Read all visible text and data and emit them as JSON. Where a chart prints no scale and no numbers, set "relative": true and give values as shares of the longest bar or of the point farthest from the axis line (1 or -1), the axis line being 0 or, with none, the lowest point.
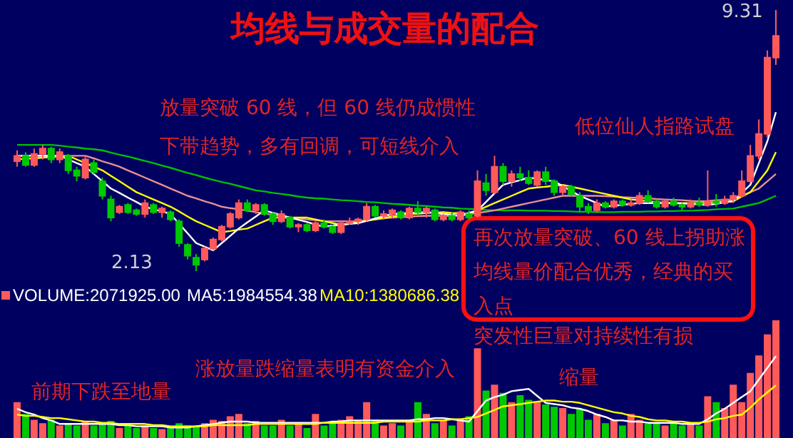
{
  "chart_data": [
    {
      "type": "candlestick",
      "title": "均线与成交量的配合",
      "categories": [
        null,
        null,
        null,
        null,
        null,
        null,
        null,
        null,
        null,
        null,
        null,
        null,
        null,
        null,
        null,
        null,
        null,
        null,
        null,
        null,
        null,
        null,
        null,
        null,
        null,
        null,
        null,
        null,
        null,
        null,
        null,
        null,
        null,
        null,
        null,
        null,
        null,
        null,
        null,
        null,
        null,
        null,
        null,
        null,
        null,
        null,
        null,
        null,
        null,
        null,
        null,
        null,
        null,
        null,
        null,
        null,
        null,
        null,
        null,
        null,
        null,
        null,
        null,
        null,
        null,
        null,
        null,
        null,
        null,
        null,
        null,
        null,
        null,
        null,
        null,
        null,
        null,
        null,
        null,
        null,
        null,
        null,
        null,
        null,
        null,
        null,
        null,
        null,
        null,
        null
      ],
      "ohlc": [
        [
          5.15,
          5.45,
          5.0,
          5.3
        ],
        [
          5.3,
          5.4,
          5.0,
          5.05
        ],
        [
          5.05,
          5.5,
          5.0,
          5.35
        ],
        [
          5.35,
          5.6,
          5.2,
          5.5
        ],
        [
          5.5,
          5.55,
          5.1,
          5.2
        ],
        [
          5.2,
          5.5,
          5.1,
          5.4
        ],
        [
          5.3,
          5.35,
          4.8,
          4.9
        ],
        [
          4.9,
          5.0,
          4.6,
          4.75
        ],
        [
          4.7,
          5.3,
          4.65,
          5.2
        ],
        [
          5.1,
          5.2,
          4.8,
          4.85
        ],
        [
          4.6,
          4.7,
          4.1,
          4.2
        ],
        [
          4.1,
          4.2,
          3.5,
          3.6
        ],
        [
          3.75,
          3.95,
          3.7,
          3.9
        ],
        [
          3.95,
          4.0,
          3.7,
          3.75
        ],
        [
          3.8,
          3.85,
          3.65,
          3.7
        ],
        [
          3.7,
          4.1,
          3.6,
          4.0
        ],
        [
          3.95,
          4.0,
          3.7,
          3.75
        ],
        [
          3.75,
          3.9,
          3.6,
          3.85
        ],
        [
          3.75,
          3.8,
          3.5,
          3.55
        ],
        [
          3.5,
          3.55,
          2.8,
          2.9
        ],
        [
          2.85,
          2.9,
          2.45,
          2.55
        ],
        [
          2.5,
          2.6,
          2.13,
          2.3
        ],
        [
          2.45,
          2.8,
          2.4,
          2.75
        ],
        [
          2.75,
          3.05,
          2.7,
          3.0
        ],
        [
          3.0,
          3.4,
          2.95,
          3.35
        ],
        [
          3.35,
          3.75,
          3.3,
          3.7
        ],
        [
          3.6,
          4.1,
          3.55,
          4.0
        ],
        [
          4.0,
          4.1,
          3.75,
          3.8
        ],
        [
          3.8,
          4.0,
          3.7,
          3.95
        ],
        [
          3.95,
          4.0,
          3.65,
          3.7
        ],
        [
          3.7,
          3.75,
          3.4,
          3.5
        ],
        [
          3.5,
          3.8,
          3.45,
          3.7
        ],
        [
          3.6,
          3.65,
          3.3,
          3.35
        ],
        [
          3.35,
          3.45,
          3.2,
          3.4
        ],
        [
          3.4,
          3.45,
          3.2,
          3.25
        ],
        [
          3.25,
          3.5,
          3.2,
          3.45
        ],
        [
          3.45,
          3.55,
          3.3,
          3.35
        ],
        [
          3.35,
          3.4,
          3.15,
          3.2
        ],
        [
          3.2,
          3.5,
          3.15,
          3.45
        ],
        [
          3.45,
          3.6,
          3.4,
          3.5
        ],
        [
          3.5,
          3.6,
          3.4,
          3.55
        ],
        [
          3.55,
          4.0,
          3.5,
          3.9
        ],
        [
          3.9,
          3.95,
          3.6,
          3.65
        ],
        [
          3.65,
          3.8,
          3.55,
          3.7
        ],
        [
          3.7,
          3.85,
          3.6,
          3.8
        ],
        [
          3.75,
          3.8,
          3.55,
          3.6
        ],
        [
          3.6,
          3.9,
          3.55,
          3.85
        ],
        [
          3.85,
          4.05,
          3.7,
          3.75
        ],
        [
          3.75,
          3.9,
          3.6,
          3.85
        ],
        [
          3.8,
          3.85,
          3.5,
          3.55
        ],
        [
          3.55,
          3.7,
          3.5,
          3.65
        ],
        [
          3.65,
          3.75,
          3.5,
          3.55
        ],
        [
          3.55,
          3.8,
          3.5,
          3.75
        ],
        [
          3.7,
          3.8,
          3.55,
          3.6
        ],
        [
          3.65,
          4.9,
          3.6,
          4.6
        ],
        [
          4.55,
          4.8,
          4.2,
          4.35
        ],
        [
          4.3,
          5.3,
          4.25,
          5.0
        ],
        [
          5.0,
          5.1,
          4.5,
          4.6
        ],
        [
          4.6,
          4.9,
          4.45,
          4.8
        ],
        [
          4.8,
          5.0,
          4.6,
          4.7
        ],
        [
          4.7,
          4.9,
          4.5,
          4.55
        ],
        [
          4.5,
          4.9,
          4.45,
          4.85
        ],
        [
          4.85,
          5.0,
          4.5,
          4.6
        ],
        [
          4.6,
          4.65,
          4.2,
          4.3
        ],
        [
          4.3,
          4.5,
          4.2,
          4.45
        ],
        [
          4.45,
          4.5,
          4.2,
          4.25
        ],
        [
          4.2,
          4.3,
          3.75,
          3.9
        ],
        [
          3.9,
          4.0,
          3.7,
          3.8
        ],
        [
          3.8,
          4.1,
          3.75,
          4.0
        ],
        [
          4.0,
          4.05,
          3.85,
          3.9
        ],
        [
          3.9,
          4.1,
          3.85,
          4.05
        ],
        [
          4.05,
          4.1,
          3.9,
          3.95
        ],
        [
          3.95,
          4.1,
          3.9,
          4.0
        ],
        [
          4.0,
          4.3,
          3.95,
          4.2
        ],
        [
          4.2,
          4.35,
          4.0,
          4.05
        ],
        [
          4.05,
          4.1,
          3.85,
          3.9
        ],
        [
          3.9,
          4.1,
          3.85,
          4.05
        ],
        [
          4.05,
          4.15,
          3.9,
          3.95
        ],
        [
          3.95,
          4.0,
          3.8,
          3.9
        ],
        [
          3.9,
          4.1,
          3.85,
          4.0
        ],
        [
          4.0,
          4.15,
          3.9,
          3.95
        ],
        [
          3.95,
          4.9,
          3.9,
          4.05
        ],
        [
          4.05,
          4.25,
          3.9,
          4.0
        ],
        [
          4.0,
          4.2,
          3.95,
          4.1
        ],
        [
          4.1,
          4.3,
          4.0,
          4.2
        ],
        [
          4.2,
          4.9,
          4.15,
          4.6
        ],
        [
          4.6,
          5.6,
          4.55,
          5.3
        ],
        [
          5.3,
          6.3,
          5.2,
          5.9
        ],
        [
          5.9,
          8.2,
          5.8,
          8.0
        ],
        [
          8.0,
          9.31,
          7.8,
          8.6
        ]
      ],
      "colors": [
        "#ff5a5a",
        "#00c800",
        "#ff5a5a",
        "#ff5a5a",
        "#00c800",
        "#ff5a5a",
        "#00c800",
        "#00c800",
        "#ff5a5a",
        "#00c800",
        "#00c800",
        "#00c800",
        "#ff5a5a",
        "#00c800",
        "#00c800",
        "#ff5a5a",
        "#00c800",
        "#ff5a5a",
        "#00c800",
        "#00c800",
        "#00c800",
        "#00c800",
        "#ff5a5a",
        "#ff5a5a",
        "#ff5a5a",
        "#ff5a5a",
        "#ff5a5a",
        "#00c800",
        "#ff5a5a",
        "#00c800",
        "#00c800",
        "#ff5a5a",
        "#00c800",
        "#ff5a5a",
        "#00c800",
        "#ff5a5a",
        "#00c800",
        "#00c800",
        "#ff5a5a",
        "#ff5a5a",
        "#ff5a5a",
        "#ff5a5a",
        "#00c800",
        "#ff5a5a",
        "#ff5a5a",
        "#00c800",
        "#ff5a5a",
        "#00c800",
        "#ff5a5a",
        "#00c800",
        "#ff5a5a",
        "#00c800",
        "#ff5a5a",
        "#00c800",
        "#ff5a5a",
        "#00c800",
        "#ff5a5a",
        "#00c800",
        "#ff5a5a",
        "#00c800",
        "#00c800",
        "#ff5a5a",
        "#00c800",
        "#00c800",
        "#ff5a5a",
        "#00c800",
        "#00c800",
        "#00c800",
        "#ff5a5a",
        "#00c800",
        "#ff5a5a",
        "#00c800",
        "#ff5a5a",
        "#ff5a5a",
        "#00c800",
        "#00c800",
        "#ff5a5a",
        "#00c800",
        "#00c800",
        "#ff5a5a",
        "#00c800",
        "#ff5a5a",
        "#00c800",
        "#ff5a5a",
        "#ff5a5a",
        "#ff5a5a",
        "#ff5a5a",
        "#ff5a5a",
        "#ff5a5a",
        "#ff5a5a"
      ],
      "series": [
        {
          "type": "line",
          "color": "#00c000",
          "values": [
            5.6,
            5.6,
            5.6,
            5.6,
            5.6,
            5.58,
            5.55,
            5.53,
            5.5,
            5.48,
            5.45,
            5.39,
            5.33,
            5.28,
            5.22,
            5.16,
            5.1,
            5.03,
            4.97,
            4.9,
            4.83,
            4.77,
            4.7,
            4.64,
            4.58,
            4.53,
            4.47,
            4.41,
            4.35,
            4.32,
            4.28,
            4.25,
            4.22,
            4.18,
            4.15,
            4.13,
            4.12,
            4.1,
            4.08,
            4.07,
            4.05,
            4.03,
            4.02,
            4.0,
            3.98,
            3.97,
            3.95,
            3.93,
            3.92,
            3.9,
            3.88,
            3.87,
            3.85,
            3.84,
            3.83,
            3.81,
            3.8,
            3.8,
            3.8,
            3.8,
            3.79,
            3.79,
            3.79,
            3.78,
            3.78,
            3.77,
            3.76,
            3.76,
            3.75,
            3.75,
            3.75,
            3.76,
            3.76,
            3.76,
            3.77,
            3.77,
            3.78,
            3.78,
            3.79,
            3.79,
            3.8,
            3.81,
            3.83,
            3.84,
            3.85,
            3.9,
            3.95,
            4.0,
            4.1,
            4.2
          ]
        },
        {
          "type": "line",
          "color": "#e89090",
          "values": [
            5.3,
            5.3,
            5.3,
            5.3,
            5.3,
            5.3,
            5.3,
            5.3,
            5.3,
            5.23,
            5.15,
            5.08,
            5.0,
            4.9,
            4.8,
            4.7,
            4.6,
            4.5,
            4.4,
            4.3,
            4.2,
            4.13,
            4.05,
            3.98,
            3.9,
            3.86,
            3.83,
            3.79,
            3.75,
            3.71,
            3.68,
            3.64,
            3.6,
            3.58,
            3.55,
            3.53,
            3.5,
            3.5,
            3.5,
            3.5,
            3.5,
            3.53,
            3.55,
            3.58,
            3.6,
            3.61,
            3.63,
            3.64,
            3.65,
            3.65,
            3.65,
            3.65,
            3.65,
            3.69,
            3.73,
            3.76,
            3.8,
            3.85,
            3.9,
            3.95,
            4.0,
            4.05,
            4.1,
            4.15,
            4.2,
            4.2,
            4.2,
            4.2,
            4.2,
            4.19,
            4.18,
            4.16,
            4.15,
            4.14,
            4.13,
            4.11,
            4.1,
            4.09,
            4.08,
            4.06,
            4.05,
            4.06,
            4.08,
            4.09,
            4.1,
            4.2,
            4.3,
            4.4,
            4.6,
            4.8
          ]
        },
        {
          "type": "line",
          "color": "#ffff00",
          "values": [
            5.2,
            5.22,
            5.23,
            5.25,
            5.27,
            5.28,
            5.3,
            5.2,
            5.1,
            5.0,
            4.9,
            4.75,
            4.6,
            4.45,
            4.3,
            4.2,
            4.1,
            4.0,
            3.9,
            3.77,
            3.63,
            3.5,
            3.4,
            3.3,
            3.2,
            3.23,
            3.27,
            3.3,
            3.4,
            3.5,
            3.6,
            3.6,
            3.6,
            3.6,
            3.6,
            3.55,
            3.5,
            3.45,
            3.4,
            3.44,
            3.48,
            3.51,
            3.55,
            3.59,
            3.63,
            3.66,
            3.7,
            3.71,
            3.73,
            3.74,
            3.75,
            3.73,
            3.72,
            3.7,
            3.8,
            3.9,
            4.0,
            4.1,
            4.2,
            4.3,
            4.4,
            4.43,
            4.45,
            4.48,
            4.5,
            4.45,
            4.4,
            4.35,
            4.3,
            4.25,
            4.2,
            4.15,
            4.1,
            4.08,
            4.05,
            4.03,
            4.0,
            4.0,
            4.0,
            4.0,
            4.0,
            4.01,
            4.03,
            4.04,
            4.05,
            4.18,
            4.3,
            4.6,
            4.9,
            5.4
          ]
        },
        {
          "type": "line",
          "color": "#ffffff",
          "values": [
            5.3,
            5.3,
            5.3,
            5.3,
            5.3,
            5.3,
            5.2,
            5.1,
            5.0,
            4.8,
            4.6,
            4.4,
            4.28,
            4.15,
            4.03,
            3.9,
            3.83,
            3.77,
            3.7,
            3.43,
            3.17,
            2.9,
            2.8,
            2.7,
            2.9,
            3.1,
            3.3,
            3.47,
            3.63,
            3.8,
            3.73,
            3.67,
            3.6,
            3.54,
            3.48,
            3.41,
            3.35,
            3.38,
            3.4,
            3.43,
            3.45,
            3.51,
            3.58,
            3.64,
            3.7,
            3.71,
            3.73,
            3.74,
            3.75,
            3.73,
            3.7,
            3.68,
            3.65,
            3.73,
            3.8,
            4.03,
            4.27,
            4.5,
            4.57,
            4.63,
            4.7,
            4.67,
            4.63,
            4.6,
            4.47,
            4.33,
            4.2,
            4.1,
            4.0,
            3.9,
            3.93,
            3.95,
            3.98,
            4.0,
            4.0,
            4.0,
            4.0,
            4.0,
            3.99,
            3.98,
            3.96,
            3.95,
            3.98,
            4.02,
            4.05,
            4.28,
            4.5,
            5.1,
            5.7,
            6.5
          ]
        }
      ],
      "annotations": [
        "放量突破 60 线，但 60 线仍成惯性",
        "下带趋势，多有回调，可短线介入",
        "低位仙人指路试盘",
        "再次放量突破、60 线上拐助涨均线量价配合优秀，经典的买入点",
        "2.13",
        "9.31"
      ]
    },
    {
      "type": "bar",
      "relative": true,
      "categories": [
        null,
        null,
        null,
        null,
        null,
        null,
        null,
        null,
        null,
        null,
        null,
        null,
        null,
        null,
        null,
        null,
        null,
        null,
        null,
        null,
        null,
        null,
        null,
        null,
        null,
        null,
        null,
        null,
        null,
        null,
        null,
        null,
        null,
        null,
        null,
        null,
        null,
        null,
        null,
        null,
        null,
        null,
        null,
        null,
        null,
        null,
        null,
        null,
        null,
        null,
        null,
        null,
        null,
        null,
        null,
        null,
        null,
        null,
        null,
        null,
        null,
        null,
        null,
        null,
        null,
        null,
        null,
        null,
        null,
        null,
        null,
        null,
        null,
        null,
        null,
        null,
        null,
        null,
        null,
        null,
        null,
        null,
        null,
        null,
        null,
        null,
        null,
        null,
        null,
        null
      ],
      "series": [
        {
          "type": "bar",
          "name": "VOLUME:2071925.00",
          "colors": [
            "#ff5a5a",
            "#00c800",
            "#ff5a5a",
            "#ff5a5a",
            "#00c800",
            "#ff5a5a",
            "#00c800",
            "#00c800",
            "#ff5a5a",
            "#00c800",
            "#00c800",
            "#00c800",
            "#ff5a5a",
            "#00c800",
            "#00c800",
            "#ff5a5a",
            "#00c800",
            "#ff5a5a",
            "#00c800",
            "#00c800",
            "#00c800",
            "#00c800",
            "#ff5a5a",
            "#ff5a5a",
            "#ff5a5a",
            "#ff5a5a",
            "#ff5a5a",
            "#00c800",
            "#ff5a5a",
            "#00c800",
            "#00c800",
            "#ff5a5a",
            "#00c800",
            "#ff5a5a",
            "#00c800",
            "#ff5a5a",
            "#00c800",
            "#00c800",
            "#ff5a5a",
            "#ff5a5a",
            "#ff5a5a",
            "#ff5a5a",
            "#00c800",
            "#ff5a5a",
            "#ff5a5a",
            "#00c800",
            "#ff5a5a",
            "#00c800",
            "#ff5a5a",
            "#00c800",
            "#ff5a5a",
            "#00c800",
            "#ff5a5a",
            "#00c800",
            "#ff5a5a",
            "#00c800",
            "#ff5a5a",
            "#00c800",
            "#ff5a5a",
            "#00c800",
            "#00c800",
            "#ff5a5a",
            "#00c800",
            "#00c800",
            "#ff5a5a",
            "#00c800",
            "#00c800",
            "#00c800",
            "#ff5a5a",
            "#00c800",
            "#ff5a5a",
            "#00c800",
            "#ff5a5a",
            "#ff5a5a",
            "#00c800",
            "#00c800",
            "#ff5a5a",
            "#00c800",
            "#00c800",
            "#ff5a5a",
            "#00c800",
            "#ff5a5a",
            "#00c800",
            "#ff5a5a",
            "#ff5a5a",
            "#ff5a5a",
            "#ff5a5a",
            "#ff5a5a",
            "#ff5a5a",
            "#ff5a5a"
          ],
          "values": [
            0.3,
            0.2,
            0.15,
            0.12,
            0.15,
            0.1,
            0.12,
            0.1,
            0.14,
            0.1,
            0.12,
            0.14,
            0.08,
            0.1,
            0.08,
            0.1,
            0.08,
            0.07,
            0.08,
            0.12,
            0.1,
            0.09,
            0.12,
            0.15,
            0.14,
            0.18,
            0.2,
            0.12,
            0.14,
            0.1,
            0.1,
            0.15,
            0.1,
            0.12,
            0.08,
            0.2,
            0.1,
            0.12,
            0.15,
            0.18,
            0.14,
            0.3,
            0.15,
            0.1,
            0.12,
            0.1,
            0.14,
            0.3,
            0.2,
            0.12,
            0.14,
            0.1,
            0.15,
            0.18,
            0.76,
            0.4,
            0.45,
            0.38,
            0.3,
            0.36,
            0.32,
            0.3,
            0.28,
            0.26,
            0.25,
            0.2,
            0.24,
            0.15,
            0.2,
            0.12,
            0.15,
            0.1,
            0.2,
            0.15,
            0.12,
            0.12,
            0.1,
            0.12,
            0.1,
            0.12,
            0.1,
            0.35,
            0.3,
            0.25,
            0.45,
            0.3,
            0.55,
            0.7,
            0.88,
            1.0
          ]
        },
        {
          "type": "line",
          "name": "MA5:1984554.38",
          "color": "#ffffff",
          "values": [
            0.25,
            0.22,
            0.2,
            0.17,
            0.15,
            0.12,
            0.12,
            0.12,
            0.12,
            0.12,
            0.12,
            0.12,
            0.11,
            0.11,
            0.1,
            0.1,
            0.1,
            0.1,
            0.09,
            0.09,
            0.09,
            0.1,
            0.11,
            0.12,
            0.13,
            0.14,
            0.14,
            0.14,
            0.13,
            0.13,
            0.13,
            0.13,
            0.13,
            0.13,
            0.13,
            0.13,
            0.13,
            0.14,
            0.14,
            0.15,
            0.15,
            0.15,
            0.15,
            0.15,
            0.15,
            0.15,
            0.15,
            0.16,
            0.16,
            0.17,
            0.17,
            0.16,
            0.15,
            0.14,
            0.23,
            0.32,
            0.35,
            0.37,
            0.4,
            0.41,
            0.42,
            0.36,
            0.3,
            0.29,
            0.28,
            0.26,
            0.25,
            0.23,
            0.2,
            0.18,
            0.15,
            0.15,
            0.14,
            0.14,
            0.13,
            0.13,
            0.13,
            0.13,
            0.12,
            0.12,
            0.12,
            0.16,
            0.21,
            0.25,
            0.3,
            0.35,
            0.4,
            0.5,
            0.6,
            0.7
          ]
        },
        {
          "type": "line",
          "name": "MA10:1380686.38",
          "color": "#ffff00",
          "values": [
            0.2,
            0.19,
            0.19,
            0.18,
            0.17,
            0.17,
            0.16,
            0.15,
            0.14,
            0.14,
            0.13,
            0.13,
            0.12,
            0.12,
            0.12,
            0.12,
            0.11,
            0.11,
            0.1,
            0.1,
            0.1,
            0.1,
            0.1,
            0.11,
            0.11,
            0.11,
            0.11,
            0.11,
            0.12,
            0.12,
            0.12,
            0.12,
            0.12,
            0.12,
            0.12,
            0.12,
            0.13,
            0.13,
            0.13,
            0.13,
            0.13,
            0.13,
            0.13,
            0.14,
            0.14,
            0.14,
            0.14,
            0.14,
            0.15,
            0.15,
            0.15,
            0.16,
            0.16,
            0.17,
            0.18,
            0.21,
            0.24,
            0.27,
            0.28,
            0.29,
            0.3,
            0.31,
            0.32,
            0.32,
            0.31,
            0.31,
            0.3,
            0.28,
            0.26,
            0.24,
            0.22,
            0.21,
            0.19,
            0.18,
            0.16,
            0.15,
            0.15,
            0.14,
            0.14,
            0.13,
            0.13,
            0.14,
            0.16,
            0.17,
            0.19,
            0.2,
            0.26,
            0.33,
            0.39,
            0.45
          ]
        }
      ],
      "annotations": [
        "涨放量跌缩量表明有资金介入",
        "突发性巨量对持续性有损",
        "前期下跌至地量",
        "缩量"
      ]
    }
  ]
}
